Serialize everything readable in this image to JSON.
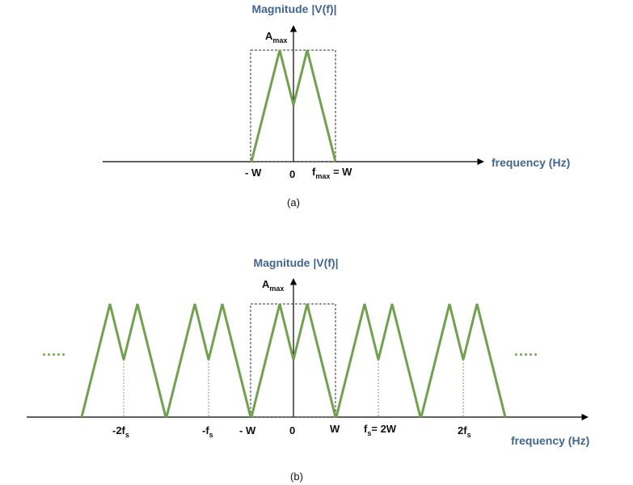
{
  "colors": {
    "spectrum": "#70a14f",
    "axis": "#000000",
    "title": "#416690",
    "alias": "#c07070"
  },
  "panel_a": {
    "y_title": "Magnitude |V(f)|",
    "x_title": "frequency (Hz)",
    "amax_main": "A",
    "amax_sub": "max",
    "tick_neg_w": "- W",
    "tick_zero": "0",
    "tick_fmax_main": "f",
    "tick_fmax_sub": "max",
    "tick_fmax_rest": " = W",
    "caption": "(a)"
  },
  "panel_b": {
    "y_title": "Magnitude |V(f)|",
    "x_title": "frequency (Hz)",
    "amax_main": "A",
    "amax_sub": "max",
    "ellipsis_left": ".....",
    "ellipsis_right": ".....",
    "tick_m2fs_main": "-2f",
    "tick_m2fs_sub": "s",
    "tick_mfs_main": "-f",
    "tick_mfs_sub": "s",
    "tick_neg_w": "- W",
    "tick_zero": "0",
    "tick_w": "W",
    "tick_fs_main": "f",
    "tick_fs_sub": "s",
    "tick_fs_rest": "= 2W",
    "tick_2fs_main": "2f",
    "tick_2fs_sub": "s",
    "caption": "(b)",
    "copies_k": [
      -2,
      -1,
      0,
      1,
      2
    ]
  }
}
